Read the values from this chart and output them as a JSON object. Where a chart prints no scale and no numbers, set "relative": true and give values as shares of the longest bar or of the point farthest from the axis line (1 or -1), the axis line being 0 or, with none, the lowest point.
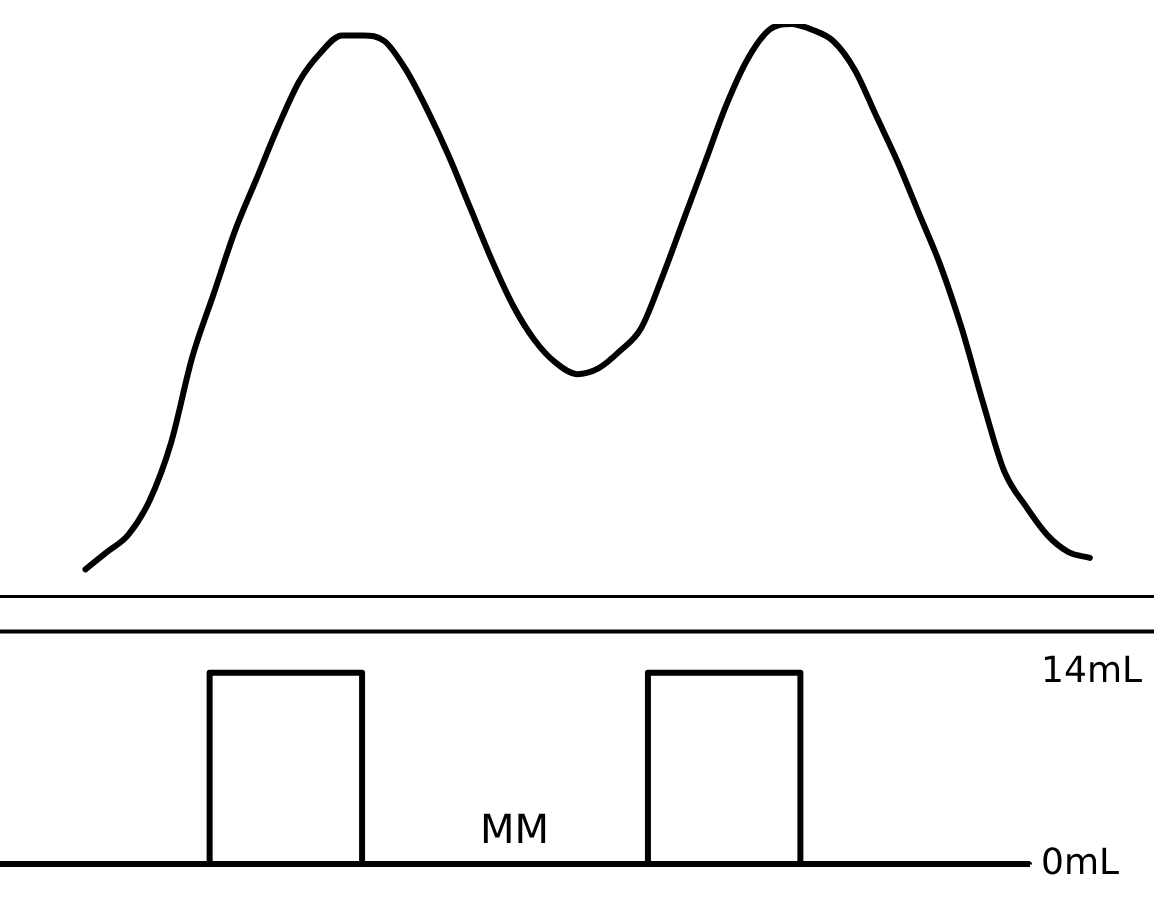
{
  "chart_data": [
    {
      "type": "line",
      "relative": true,
      "tick_labels": false,
      "categories": [
        null,
        null,
        null,
        null,
        null,
        null,
        null,
        null,
        null,
        null,
        null,
        null,
        null,
        null,
        null,
        null,
        null,
        null,
        null,
        null,
        null,
        null,
        null,
        null,
        null,
        null,
        null,
        null,
        null,
        null,
        null,
        null,
        null,
        null,
        null,
        null,
        null,
        null,
        null,
        null,
        null,
        null,
        null,
        null,
        null,
        null,
        null,
        null,
        null,
        null,
        null,
        null,
        null,
        null,
        null
      ],
      "series": [
        {
          "color": "#000000",
          "values": [
            null,
            null,
            null,
            null,
            0.05,
            0.08,
            0.11,
            0.17,
            0.27,
            0.42,
            0.53,
            0.64,
            0.73,
            0.82,
            0.9,
            0.95,
            0.98,
            0.98,
            0.97,
            0.92,
            0.85,
            0.77,
            0.68,
            0.59,
            0.51,
            0.45,
            0.41,
            0.39,
            0.4,
            0.43,
            0.47,
            0.56,
            0.66,
            0.76,
            0.86,
            0.94,
            0.99,
            1,
            0.99,
            0.97,
            0.92,
            0.84,
            0.76,
            0.67,
            0.58,
            0.47,
            0.34,
            0.22,
            0.16,
            0.11,
            0.08,
            0.07,
            null,
            null,
            null
          ]
        }
      ]
    },
    {
      "type": "step",
      "tick_labels": "y",
      "ylim": [
        0,
        17
      ],
      "yticks": [
        {
          "value": 14,
          "label": "14mL"
        },
        {
          "value": 0,
          "label": "0mL"
        }
      ],
      "annotations": [
        "MM"
      ],
      "categories": [
        null,
        null,
        null,
        null,
        null,
        null,
        null,
        null,
        null,
        null,
        null,
        null,
        null,
        null,
        null,
        null,
        null,
        null,
        null,
        null,
        null,
        null,
        null,
        null,
        null,
        null,
        null,
        null,
        null,
        null,
        null,
        null,
        null,
        null,
        null,
        null,
        null,
        null,
        null,
        null,
        null,
        null,
        null,
        null,
        null,
        null,
        null,
        null,
        null,
        null,
        null,
        null,
        null,
        null,
        null
      ],
      "series": [
        {
          "color": "#000000",
          "values": [
            0,
            0,
            0,
            0,
            0,
            0,
            0,
            0,
            0,
            0,
            0,
            0,
            14,
            14,
            14,
            14,
            14,
            14,
            14,
            14,
            0,
            0,
            0,
            0,
            0,
            0,
            0,
            0,
            0,
            0,
            0,
            0,
            0,
            0,
            0,
            14,
            14,
            14,
            14,
            14,
            14,
            14,
            14,
            0,
            0,
            0,
            0,
            0,
            0,
            0,
            0,
            0,
            0,
            0,
            0
          ]
        }
      ]
    }
  ]
}
